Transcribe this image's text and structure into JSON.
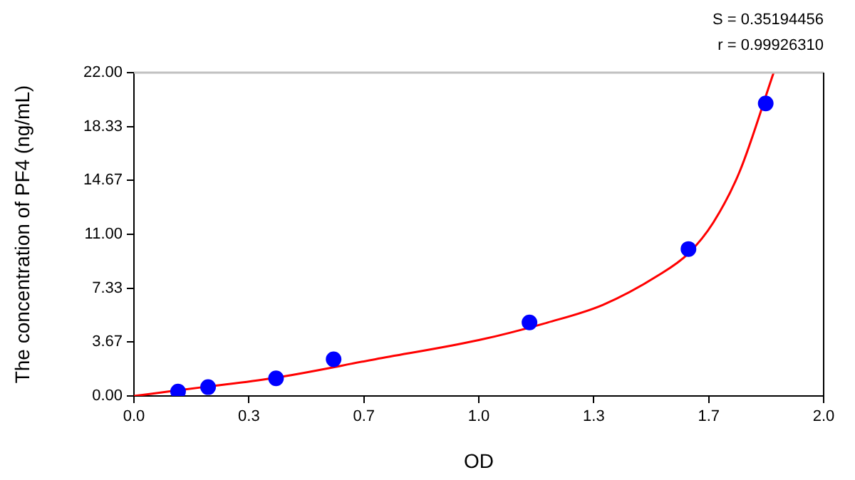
{
  "chart_data": {
    "type": "scatter",
    "xlabel": "OD",
    "ylabel": "The concentration of PF4 (ng/mL)",
    "annotations": [
      "S = 0.35194456",
      "r = 0.99926310"
    ],
    "xlim": [
      0,
      2
    ],
    "xticks": [
      {
        "value": 0,
        "label": "0.0"
      },
      {
        "value": 0.3333,
        "label": "0.3"
      },
      {
        "value": 0.6667,
        "label": "0.7"
      },
      {
        "value": 1,
        "label": "1.0"
      },
      {
        "value": 1.3333,
        "label": "1.3"
      },
      {
        "value": 1.6667,
        "label": "1.7"
      },
      {
        "value": 2,
        "label": "2.0"
      }
    ],
    "ylim": [
      0,
      22
    ],
    "yticks": [
      {
        "value": 0,
        "label": "0.00"
      },
      {
        "value": 3.6667,
        "label": "3.67"
      },
      {
        "value": 7.3333,
        "label": "7.33"
      },
      {
        "value": 11,
        "label": "11.00"
      },
      {
        "value": 14.6667,
        "label": "14.67"
      },
      {
        "value": 18.3333,
        "label": "18.33"
      },
      {
        "value": 22,
        "label": "22.00"
      }
    ],
    "grid": false,
    "legend": false,
    "series": [
      {
        "type": "line",
        "color": "#ff0000",
        "marker": "none",
        "x": [
          0,
          0.1,
          0.2,
          0.4,
          0.7,
          1.0,
          1.2,
          1.36,
          1.52,
          1.608,
          1.68,
          1.757,
          1.855
        ],
        "values": [
          0,
          0.3,
          0.6,
          1.2,
          2.5,
          3.8,
          5.0,
          6.2,
          8.2,
          9.7,
          11.8,
          15.3,
          22
        ]
      },
      {
        "type": "scatter",
        "color": "#0000ff",
        "marker": "circle",
        "x": [
          0.128,
          0.215,
          0.412,
          0.579,
          1.147,
          1.608,
          1.832
        ],
        "values": [
          0.3,
          0.6,
          1.2,
          2.5,
          5.0,
          10.0,
          19.9
        ]
      }
    ]
  }
}
